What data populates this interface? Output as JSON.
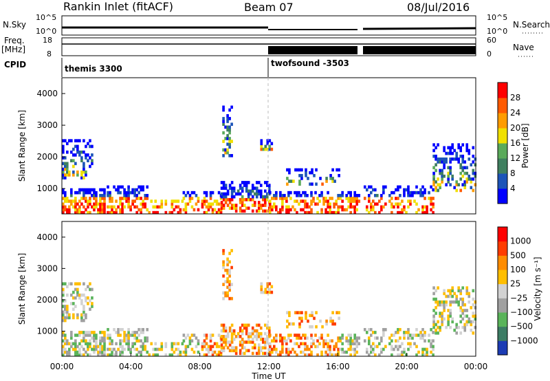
{
  "header": {
    "station": "Rankin Inlet (fitACF)",
    "beam": "Beam 07",
    "date": "08/Jul/2016"
  },
  "panels": {
    "nsky": {
      "left_label": "N.Sky",
      "right_label": "N.Search",
      "left_ticks": [
        "10^5",
        "10^0"
      ],
      "right_ticks": [
        "10^5",
        "10^0"
      ]
    },
    "freq": {
      "left_label_top": "Freq.",
      "left_label_unit": "[MHz]",
      "right_label": "Nave",
      "left_ticks": [
        "18",
        "8"
      ],
      "right_ticks": [
        "60",
        "0"
      ]
    },
    "cpid": {
      "label": "CPID",
      "modes": [
        "themis 3300",
        "twofsound -3503"
      ]
    }
  },
  "colors": {
    "power_scale": [
      "#0000ff",
      "#1c54b8",
      "#3f7f5f",
      "#5aaa5a",
      "#f0e000",
      "#ff9c00",
      "#ff5a00",
      "#ff0000"
    ],
    "velocity_scale": [
      "#1c3cb4",
      "#3c7c64",
      "#5ab45a",
      "#a0a0a0",
      "#d2d2d2",
      "#ffbe00",
      "#ff8c00",
      "#ff3c00",
      "#ff0000"
    ]
  },
  "chart_data": [
    {
      "type": "heatmap",
      "name": "power",
      "ylabel": "Slant Range [km]",
      "yticks": [
        "1000",
        "2000",
        "3000",
        "4000"
      ],
      "ylim": [
        200,
        4500
      ],
      "colorbar": {
        "label": "Power [dB]",
        "ticks": [
          "4",
          "8",
          "12",
          "16",
          "20",
          "24",
          "28"
        ]
      }
    },
    {
      "type": "heatmap",
      "name": "velocity",
      "ylabel": "Slant Range [km]",
      "yticks": [
        "1000",
        "2000",
        "3000",
        "4000"
      ],
      "ylim": [
        200,
        4500
      ],
      "xlabel": "Time UT",
      "xticks": [
        "00:00",
        "04:00",
        "08:00",
        "12:00",
        "16:00",
        "20:00",
        "00:00"
      ],
      "xlim": [
        0,
        24
      ],
      "colorbar": {
        "label": "Velocity [m s⁻¹]",
        "ticks": [
          "1000",
          "500",
          "100",
          "25",
          "−25",
          "−100",
          "−500",
          "−1000"
        ]
      }
    }
  ]
}
